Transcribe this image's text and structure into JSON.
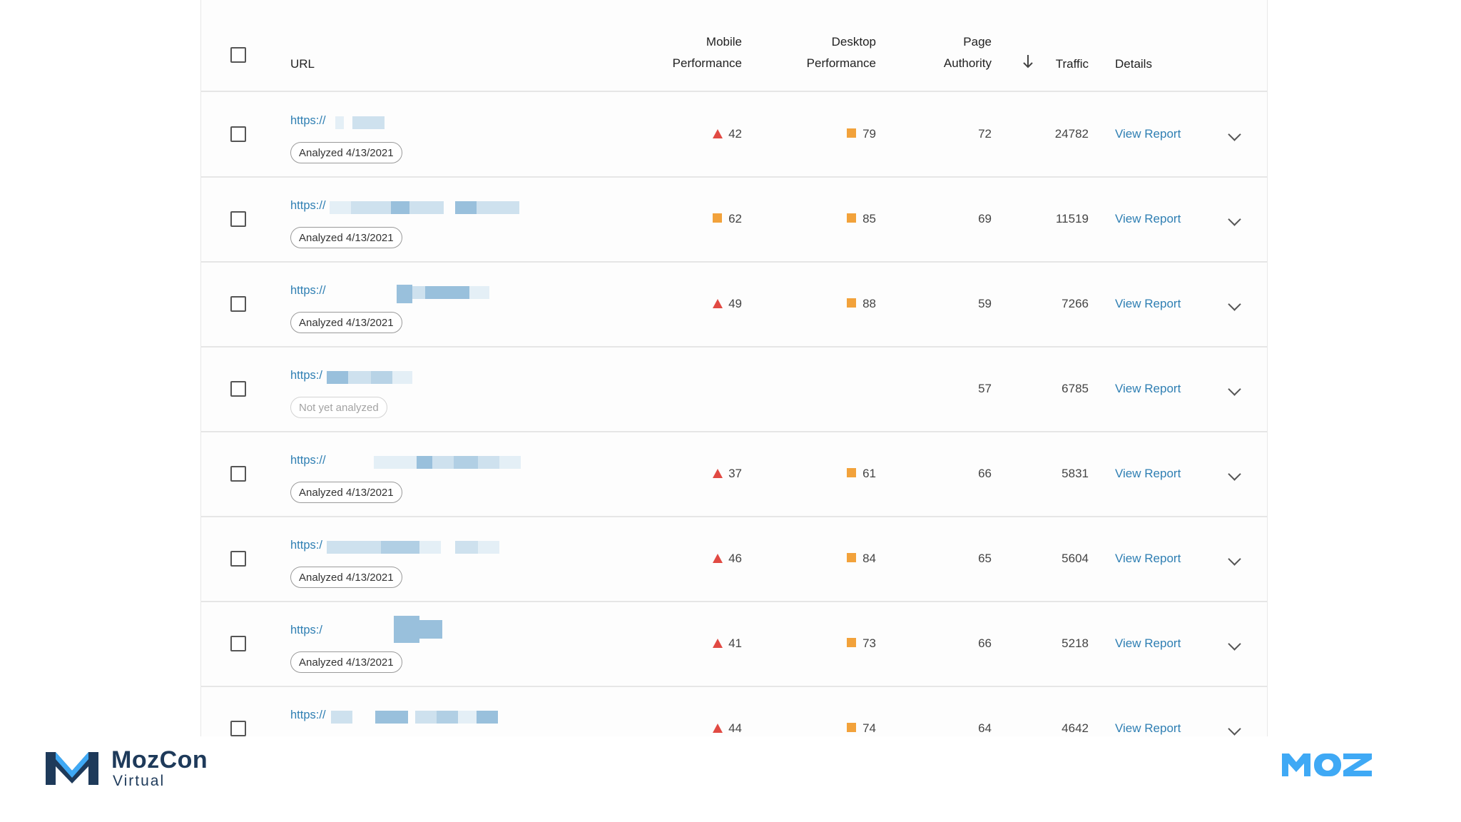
{
  "header": {
    "url": "URL",
    "mobile_line1": "Mobile",
    "mobile_line2": "Performance",
    "desktop_line1": "Desktop",
    "desktop_line2": "Performance",
    "pa_line1": "Page",
    "pa_line2": "Authority",
    "traffic": "Traffic",
    "details": "Details",
    "sort_icon": "arrow-down-icon"
  },
  "rows": [
    {
      "url": "https://",
      "status": "Analyzed 4/13/2021",
      "mobile": "42",
      "mobile_icon": "triangle",
      "desktop": "79",
      "desktop_icon": "square",
      "pa": "72",
      "traffic": "24782",
      "link": "View Report"
    },
    {
      "url": "https://",
      "status": "Analyzed 4/13/2021",
      "mobile": "62",
      "mobile_icon": "square",
      "desktop": "85",
      "desktop_icon": "square",
      "pa": "69",
      "traffic": "11519",
      "link": "View Report"
    },
    {
      "url": "https://",
      "status": "Analyzed 4/13/2021",
      "mobile": "49",
      "mobile_icon": "triangle",
      "desktop": "88",
      "desktop_icon": "square",
      "pa": "59",
      "traffic": "7266",
      "link": "View Report"
    },
    {
      "url": "https:/",
      "status": "Not yet analyzed",
      "mobile": "",
      "mobile_icon": "",
      "desktop": "",
      "desktop_icon": "",
      "pa": "57",
      "traffic": "6785",
      "link": "View Report"
    },
    {
      "url": "https://",
      "status": "Analyzed 4/13/2021",
      "mobile": "37",
      "mobile_icon": "triangle",
      "desktop": "61",
      "desktop_icon": "square",
      "pa": "66",
      "traffic": "5831",
      "link": "View Report"
    },
    {
      "url": "https:/",
      "status": "Analyzed 4/13/2021",
      "mobile": "46",
      "mobile_icon": "triangle",
      "desktop": "84",
      "desktop_icon": "square",
      "pa": "65",
      "traffic": "5604",
      "link": "View Report"
    },
    {
      "url": "https:/",
      "status": "Analyzed 4/13/2021",
      "mobile": "41",
      "mobile_icon": "triangle",
      "desktop": "73",
      "desktop_icon": "square",
      "pa": "66",
      "traffic": "5218",
      "link": "View Report"
    },
    {
      "url": "https://",
      "status": "",
      "mobile": "44",
      "mobile_icon": "triangle",
      "desktop": "74",
      "desktop_icon": "square",
      "pa": "64",
      "traffic": "4642",
      "link": "View Report"
    }
  ],
  "colors": {
    "link": "#2f7fb3",
    "poor": "#e14a43",
    "average": "#f2a23b",
    "brand_dark": "#1e3a5a",
    "moz_blue": "#3fa9f5"
  },
  "footer": {
    "brand_name": "MozCon",
    "brand_sub": "Virtual",
    "brand_icon": "mozcon-logo-icon",
    "moz_logo": "MOZ"
  }
}
